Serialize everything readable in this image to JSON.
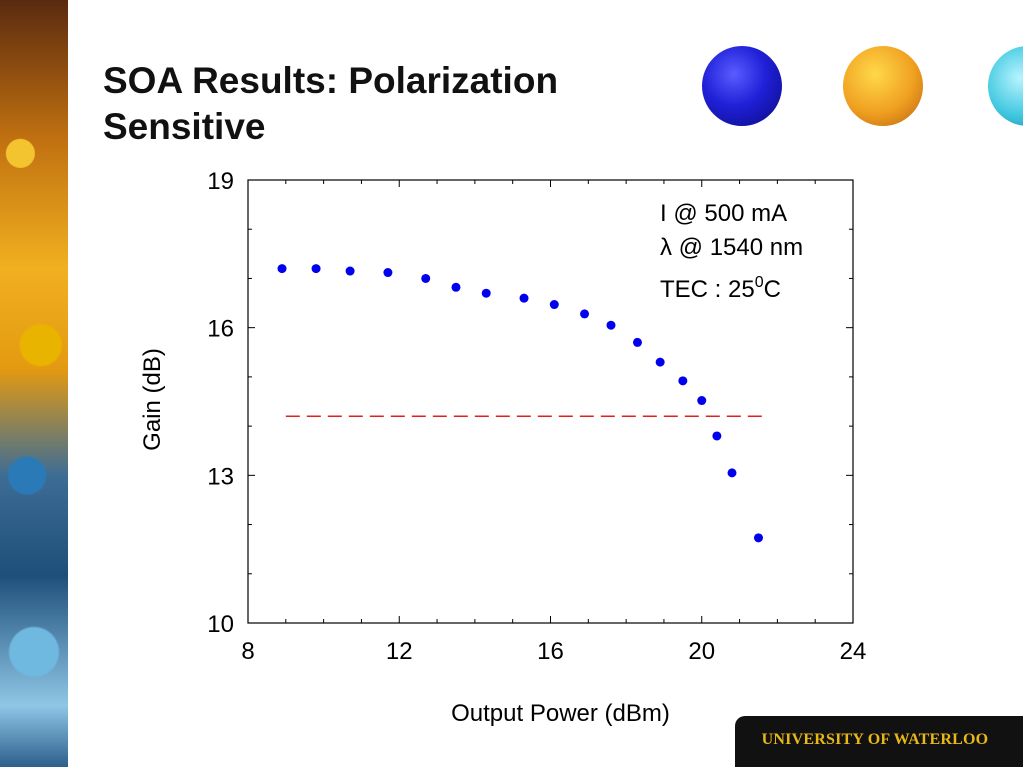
{
  "slide": {
    "title": "SOA Results: Polarization Sensitive",
    "footer": "UNIVERSITY OF WATERLOO"
  },
  "chart_data": {
    "type": "scatter",
    "title": "",
    "xlabel": "Output Power (dBm)",
    "ylabel": "Gain (dB)",
    "xlim": [
      8,
      24
    ],
    "ylim": [
      10,
      19
    ],
    "xticks": [
      8,
      12,
      16,
      20,
      24
    ],
    "yticks": [
      10,
      13,
      16,
      19
    ],
    "grid": false,
    "series": [
      {
        "color": "#0000ee",
        "x": [
          8.9,
          9.8,
          10.7,
          11.7,
          12.7,
          13.5,
          14.3,
          15.3,
          16.1,
          16.9,
          17.6,
          18.3,
          18.9,
          19.5,
          20.0,
          20.4,
          20.8,
          21.5
        ],
        "y": [
          17.2,
          17.2,
          17.15,
          17.12,
          17.0,
          16.82,
          16.7,
          16.6,
          16.47,
          16.28,
          16.05,
          15.7,
          15.3,
          14.92,
          14.52,
          13.8,
          13.05,
          11.73
        ]
      }
    ],
    "reference_line": {
      "style": "dashed",
      "color": "#e02020",
      "y": 14.2,
      "x": [
        9.0,
        21.6
      ]
    },
    "annotations": [
      {
        "text": "I @ 500 mA"
      },
      {
        "text": "λ @ 1540 nm"
      },
      {
        "text": "TEC : 25",
        "superscript": "0",
        "suffix": "C"
      }
    ]
  }
}
